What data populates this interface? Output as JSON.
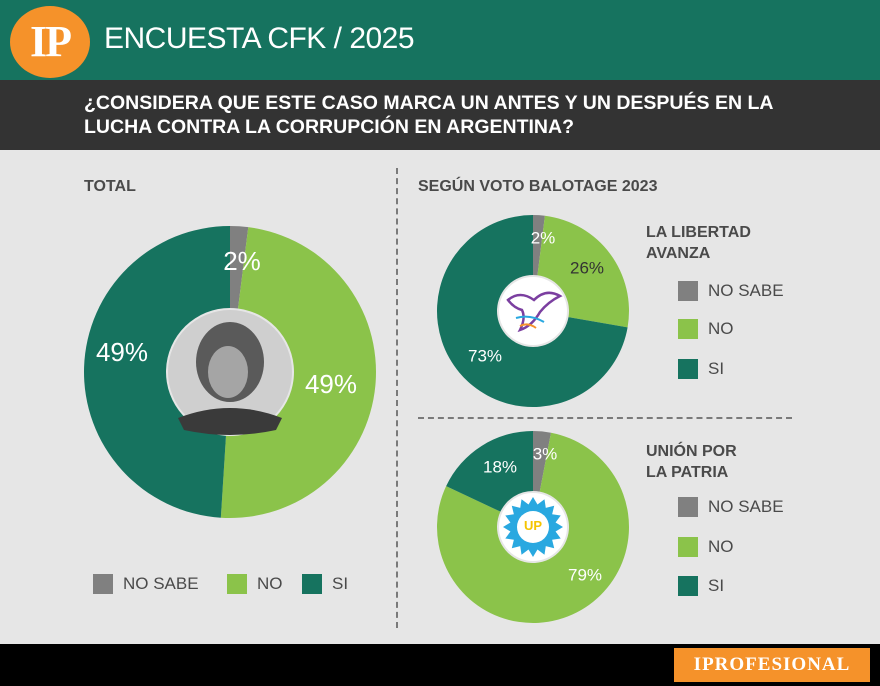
{
  "header": {
    "logo_text": "IP",
    "title": "ENCUESTA CFK / 2025"
  },
  "question": "¿CONSIDERA QUE ESTE CASO MARCA UN ANTES Y UN DESPUÉS EN LA LUCHA CONTRA LA CORRUPCIÓN EN ARGENTINA?",
  "sections": {
    "total_label": "TOTAL",
    "balotage_label": "SEGÚN VOTO BALOTAGE 2023"
  },
  "legend": {
    "no_sabe": "NO SABE",
    "no": "NO",
    "si": "SI"
  },
  "colors": {
    "no_sabe": "#808080",
    "no": "#8bc34a",
    "si": "#16735f",
    "accent": "#f5922a",
    "lla_purple": "#7b3fa0",
    "up_blue": "#29a8e0",
    "up_yellow": "#f5c400"
  },
  "parties": {
    "lla": {
      "name_line1": "LA LIBERTAD",
      "name_line2": "AVANZA"
    },
    "up": {
      "name_line1": "UNIÓN POR",
      "name_line2": "LA PATRIA",
      "logo_text": "UP"
    }
  },
  "chart_data": [
    {
      "type": "pie",
      "title": "TOTAL",
      "categories": [
        "NO SABE",
        "NO",
        "SI"
      ],
      "values": [
        2,
        49,
        49
      ],
      "labels": [
        "2%",
        "49%",
        "49%"
      ]
    },
    {
      "type": "pie",
      "title": "LA LIBERTAD AVANZA",
      "categories": [
        "NO SABE",
        "NO",
        "SI"
      ],
      "values": [
        2,
        26,
        73
      ],
      "labels": [
        "2%",
        "26%",
        "73%"
      ]
    },
    {
      "type": "pie",
      "title": "UNIÓN POR LA PATRIA",
      "categories": [
        "NO SABE",
        "NO",
        "SI"
      ],
      "values": [
        3,
        79,
        18
      ],
      "labels": [
        "3%",
        "79%",
        "18%"
      ]
    }
  ],
  "footer": {
    "brand": "IPROFESIONAL"
  }
}
